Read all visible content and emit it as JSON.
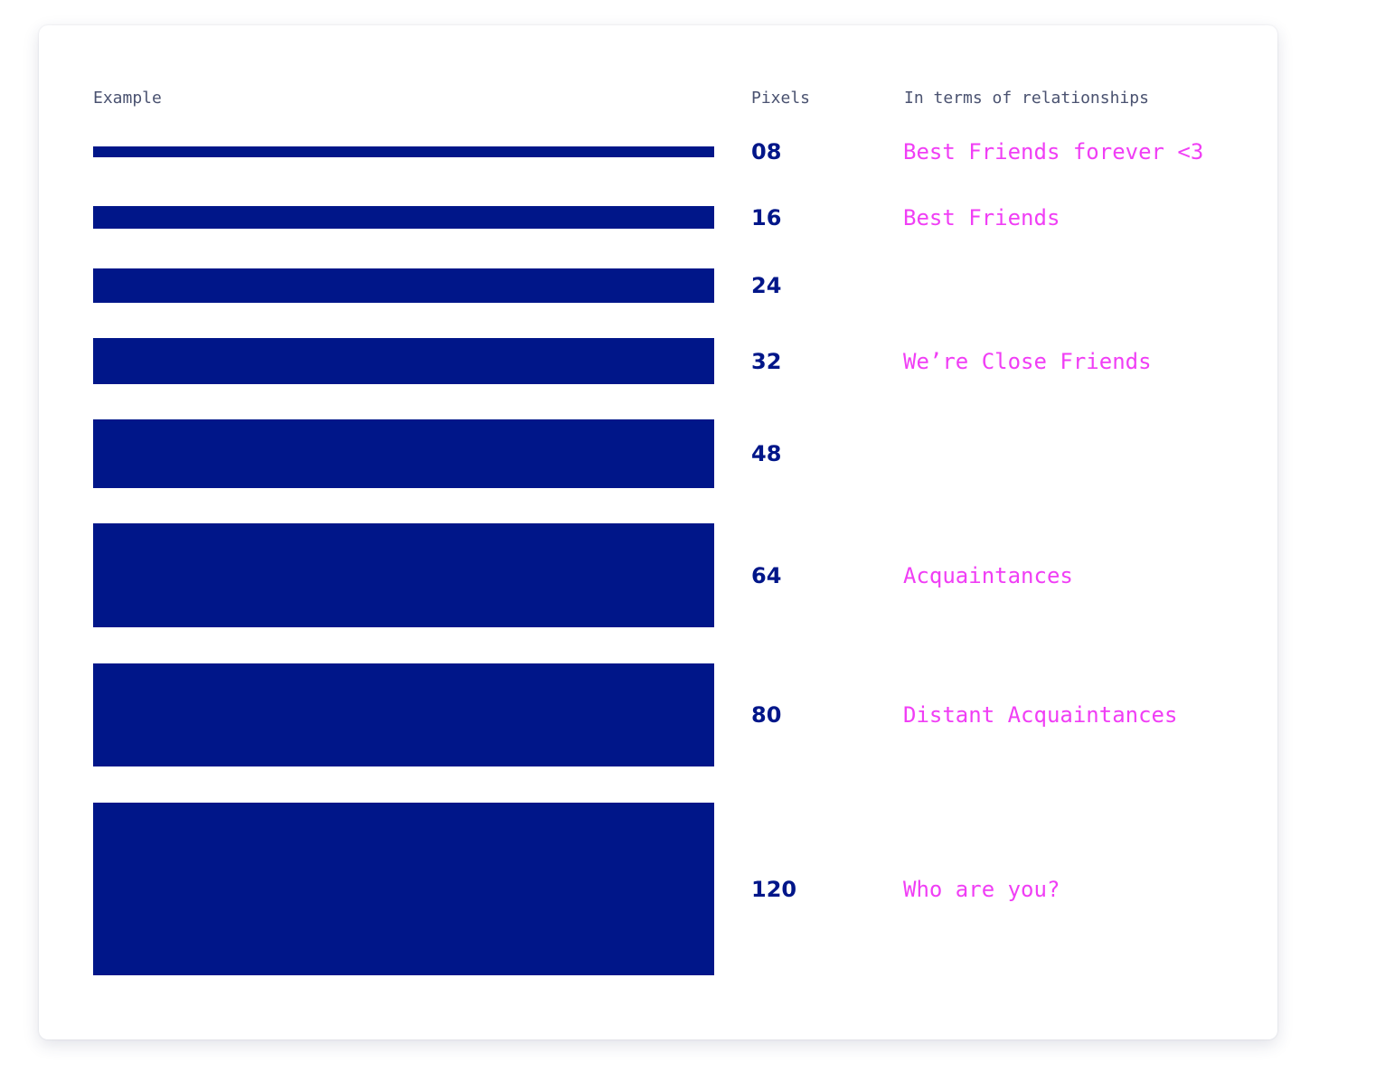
{
  "header": {
    "example": "Example",
    "pixels": "Pixels",
    "relationships": "In terms of relationships"
  },
  "rows": [
    {
      "pixels": "08",
      "relationship": "Best Friends forever <3"
    },
    {
      "pixels": "16",
      "relationship": "Best Friends"
    },
    {
      "pixels": "24"
    },
    {
      "pixels": "32",
      "relationship": "We’re Close Friends"
    },
    {
      "pixels": "48"
    },
    {
      "pixels": "64",
      "relationship": "Acquaintances"
    },
    {
      "pixels": "80",
      "relationship": "Distant Acquaintances"
    },
    {
      "pixels": "120",
      "relationship": "Who are you?"
    }
  ]
}
